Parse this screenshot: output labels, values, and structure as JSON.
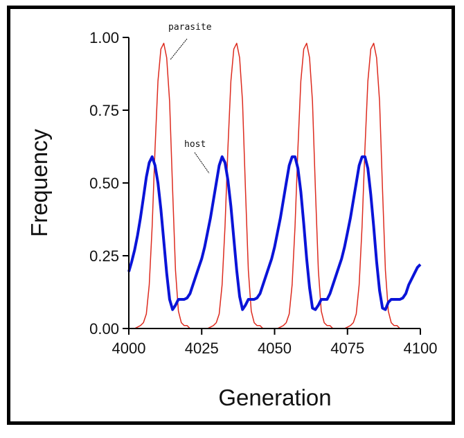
{
  "chart_data": {
    "type": "line",
    "title": "",
    "xlabel": "Generation",
    "ylabel": "Frequency",
    "xlim": [
      4000,
      4100
    ],
    "ylim": [
      0,
      1
    ],
    "x_ticks": [
      4000,
      4025,
      4050,
      4075,
      4100
    ],
    "x_tick_labels": [
      "4000",
      "4025",
      "4050",
      "4075",
      "4100"
    ],
    "y_ticks": [
      0,
      0.25,
      0.5,
      0.75,
      1.0
    ],
    "y_tick_labels": [
      "0.00",
      "0.25",
      "0.50",
      "0.75",
      "1.00"
    ],
    "grid": false,
    "legend": "none",
    "annotations": [
      {
        "text": "parasite",
        "series": "parasite"
      },
      {
        "text": "host",
        "series": "host"
      }
    ],
    "series": [
      {
        "name": "host",
        "color": "#0a14d8",
        "x": [
          4000,
          4001,
          4002,
          4003,
          4004,
          4005,
          4006,
          4007,
          4008,
          4009,
          4010,
          4011,
          4012,
          4013,
          4014,
          4015,
          4016,
          4017,
          4018,
          4019,
          4020,
          4021,
          4022,
          4023,
          4024,
          4025,
          4026,
          4027,
          4028,
          4029,
          4030,
          4031,
          4032,
          4033,
          4034,
          4035,
          4036,
          4037,
          4038,
          4039,
          4040,
          4041,
          4042,
          4043,
          4044,
          4045,
          4046,
          4047,
          4048,
          4049,
          4050,
          4051,
          4052,
          4053,
          4054,
          4055,
          4056,
          4057,
          4058,
          4059,
          4060,
          4061,
          4062,
          4063,
          4064,
          4065,
          4066,
          4067,
          4068,
          4069,
          4070,
          4071,
          4072,
          4073,
          4074,
          4075,
          4076,
          4077,
          4078,
          4079,
          4080,
          4081,
          4082,
          4083,
          4084,
          4085,
          4086,
          4087,
          4088,
          4089,
          4090,
          4091,
          4092,
          4093,
          4094,
          4095,
          4096,
          4097,
          4098,
          4099,
          4100
        ],
        "values": [
          0.195,
          0.23,
          0.27,
          0.32,
          0.38,
          0.45,
          0.52,
          0.57,
          0.59,
          0.56,
          0.5,
          0.41,
          0.3,
          0.19,
          0.1,
          0.065,
          0.08,
          0.1,
          0.1,
          0.1,
          0.105,
          0.12,
          0.15,
          0.18,
          0.21,
          0.24,
          0.28,
          0.33,
          0.38,
          0.44,
          0.5,
          0.56,
          0.59,
          0.57,
          0.51,
          0.42,
          0.31,
          0.2,
          0.11,
          0.065,
          0.08,
          0.1,
          0.1,
          0.1,
          0.105,
          0.12,
          0.15,
          0.18,
          0.21,
          0.24,
          0.28,
          0.33,
          0.38,
          0.44,
          0.5,
          0.56,
          0.59,
          0.59,
          0.55,
          0.47,
          0.36,
          0.24,
          0.14,
          0.07,
          0.065,
          0.08,
          0.1,
          0.1,
          0.1,
          0.12,
          0.15,
          0.18,
          0.21,
          0.24,
          0.28,
          0.33,
          0.38,
          0.44,
          0.5,
          0.56,
          0.59,
          0.59,
          0.55,
          0.46,
          0.35,
          0.23,
          0.13,
          0.07,
          0.065,
          0.09,
          0.1,
          0.1,
          0.1,
          0.1,
          0.105,
          0.12,
          0.15,
          0.17,
          0.19,
          0.21,
          0.22
        ]
      },
      {
        "name": "parasite",
        "color": "#dd2a1e",
        "x": [
          4000,
          4001,
          4002,
          4003,
          4004,
          4005,
          4006,
          4007,
          4008,
          4009,
          4010,
          4011,
          4012,
          4013,
          4014,
          4015,
          4016,
          4017,
          4018,
          4019,
          4020,
          4021,
          4022,
          4023,
          4024,
          4025,
          4026,
          4027,
          4028,
          4029,
          4030,
          4031,
          4032,
          4033,
          4034,
          4035,
          4036,
          4037,
          4038,
          4039,
          4040,
          4041,
          4042,
          4043,
          4044,
          4045,
          4046,
          4047,
          4048,
          4049,
          4050,
          4051,
          4052,
          4053,
          4054,
          4055,
          4056,
          4057,
          4058,
          4059,
          4060,
          4061,
          4062,
          4063,
          4064,
          4065,
          4066,
          4067,
          4068,
          4069,
          4070,
          4071,
          4072,
          4073,
          4074,
          4075,
          4076,
          4077,
          4078,
          4079,
          4080,
          4081,
          4082,
          4083,
          4084,
          4085,
          4086,
          4087,
          4088,
          4089,
          4090,
          4091,
          4092,
          4093,
          4094,
          4095,
          4096,
          4097,
          4098,
          4099,
          4100
        ],
        "values": [
          0.0,
          0.0,
          0.0,
          0.005,
          0.01,
          0.02,
          0.05,
          0.15,
          0.35,
          0.62,
          0.85,
          0.96,
          0.98,
          0.93,
          0.78,
          0.48,
          0.2,
          0.06,
          0.02,
          0.01,
          0.01,
          0.0,
          0.0,
          0.0,
          0.0,
          0.0,
          0.0,
          0.0,
          0.005,
          0.01,
          0.02,
          0.05,
          0.15,
          0.35,
          0.62,
          0.85,
          0.96,
          0.98,
          0.93,
          0.78,
          0.48,
          0.2,
          0.06,
          0.02,
          0.01,
          0.01,
          0.0,
          0.0,
          0.0,
          0.0,
          0.0,
          0.0,
          0.005,
          0.01,
          0.02,
          0.05,
          0.15,
          0.35,
          0.62,
          0.85,
          0.96,
          0.98,
          0.93,
          0.78,
          0.48,
          0.2,
          0.06,
          0.02,
          0.01,
          0.01,
          0.0,
          0.0,
          0.0,
          0.0,
          0.0,
          0.005,
          0.01,
          0.02,
          0.05,
          0.15,
          0.35,
          0.62,
          0.85,
          0.96,
          0.98,
          0.93,
          0.78,
          0.48,
          0.2,
          0.06,
          0.02,
          0.01,
          0.01,
          0.0,
          0.0,
          0.0,
          0.0,
          0.0,
          0.0,
          0.0,
          0.0
        ]
      }
    ]
  }
}
